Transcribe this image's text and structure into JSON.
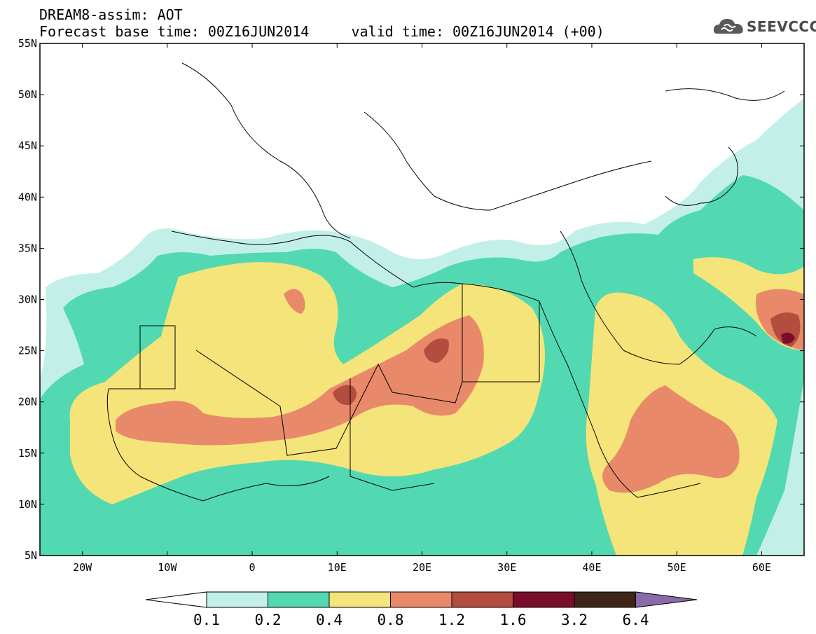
{
  "header": {
    "line1": "DREAM8-assim: AOT",
    "line2": "Forecast base time: 00Z16JUN2014     valid time: 00Z16JUN2014 (+00)",
    "logo_text": "SEEVCCC",
    "logo_icon": "cloud-icon"
  },
  "map": {
    "lat_labels": [
      "55N",
      "50N",
      "45N",
      "40N",
      "35N",
      "30N",
      "25N",
      "20N",
      "15N",
      "10N",
      "5N"
    ],
    "lon_labels": [
      "20W",
      "10W",
      "0",
      "10E",
      "20E",
      "30E",
      "40E",
      "50E",
      "60E"
    ],
    "lat_range": [
      5,
      55
    ],
    "lon_range": [
      -25,
      65
    ],
    "field": "Aerosol Optical Thickness"
  },
  "colorbar": {
    "labels": [
      "0.1",
      "0.2",
      "0.4",
      "0.8",
      "1.2",
      "1.6",
      "3.2",
      "6.4"
    ],
    "colors": [
      "#ffffff",
      "#c2f0e8",
      "#52d9b2",
      "#f5e47a",
      "#e8896a",
      "#b34d3e",
      "#7a0e2a",
      "#3d2617",
      "#8a6aa8"
    ]
  }
}
